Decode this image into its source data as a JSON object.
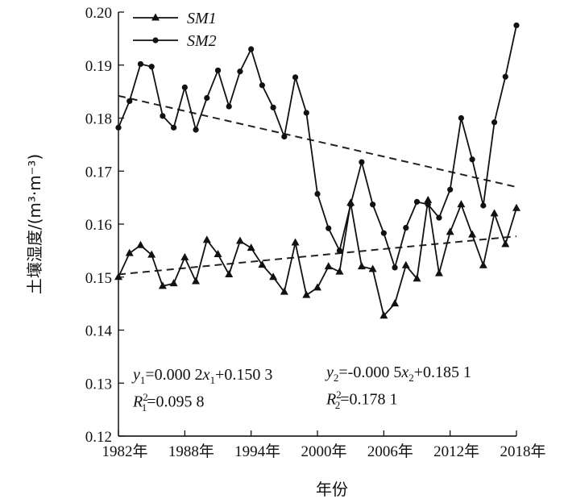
{
  "chart_data": {
    "type": "line",
    "xlabel": "年份",
    "ylabel": "土壤湿度/(m³·m⁻³)",
    "ylim": [
      0.12,
      0.2
    ],
    "xlim": [
      1982,
      2018
    ],
    "y_ticks": [
      "0.12",
      "0.13",
      "0.14",
      "0.15",
      "0.16",
      "0.17",
      "0.18",
      "0.19",
      "0.20"
    ],
    "x_ticks": [
      {
        "value": 1982,
        "label": "1982年"
      },
      {
        "value": 1988,
        "label": "1988年"
      },
      {
        "value": 1994,
        "label": "1994年"
      },
      {
        "value": 2000,
        "label": "2000年"
      },
      {
        "value": 2006,
        "label": "2006年"
      },
      {
        "value": 2012,
        "label": "2012年"
      },
      {
        "value": 2018,
        "label": "2018年"
      }
    ],
    "x": [
      1982,
      1983,
      1984,
      1985,
      1986,
      1987,
      1988,
      1989,
      1990,
      1991,
      1992,
      1993,
      1994,
      1995,
      1996,
      1997,
      1998,
      1999,
      2000,
      2001,
      2002,
      2003,
      2004,
      2005,
      2006,
      2007,
      2008,
      2009,
      2010,
      2011,
      2012,
      2013,
      2014,
      2015,
      2016,
      2017,
      2018
    ],
    "series": [
      {
        "name": "SM1",
        "marker": "triangle",
        "values": [
          0.15,
          0.1545,
          0.156,
          0.1542,
          0.1483,
          0.1488,
          0.1537,
          0.1492,
          0.157,
          0.1543,
          0.1505,
          0.1568,
          0.1555,
          0.1523,
          0.15,
          0.1472,
          0.1565,
          0.1466,
          0.148,
          0.152,
          0.151,
          0.164,
          0.152,
          0.1515,
          0.1427,
          0.145,
          0.1522,
          0.1497,
          0.1645,
          0.1507,
          0.1585,
          0.1637,
          0.158,
          0.1522,
          0.162,
          0.1562,
          0.163
        ]
      },
      {
        "name": "SM2",
        "marker": "circle",
        "values": [
          0.1782,
          0.1832,
          0.1902,
          0.1897,
          0.1804,
          0.1782,
          0.1858,
          0.1778,
          0.1838,
          0.189,
          0.1822,
          0.1888,
          0.193,
          0.1862,
          0.182,
          0.1765,
          0.1877,
          0.181,
          0.1657,
          0.1592,
          0.155,
          0.1637,
          0.1717,
          0.1637,
          0.1583,
          0.1518,
          0.1593,
          0.1642,
          0.1637,
          0.1612,
          0.1665,
          0.18,
          0.1722,
          0.1635,
          0.1792,
          0.1878,
          0.1975
        ]
      }
    ],
    "trendlines": [
      {
        "series": "SM1",
        "from": [
          1982,
          0.1505
        ],
        "to": [
          2018,
          0.1577
        ]
      },
      {
        "series": "SM2",
        "from": [
          1982,
          0.1842
        ],
        "to": [
          2018,
          0.167
        ]
      }
    ],
    "legend_position": "top-left",
    "grid": false
  },
  "annotations": {
    "eq1": {
      "y": "y",
      "s1": "1",
      "mid": "=0.000 2",
      "x": "x",
      "s2": "1",
      "tail": "+0.150 3"
    },
    "r1": {
      "r": "R",
      "sup": "2",
      "sub": "1",
      "tail": "=0.095 8"
    },
    "eq2": {
      "y": "y",
      "s1": "2",
      "mid": "=-0.000 5",
      "x": "x",
      "s2": "2",
      "tail": "+0.185 1"
    },
    "r2": {
      "r": "R",
      "sup": "2",
      "sub": "2",
      "tail": "=0.178 1"
    }
  }
}
